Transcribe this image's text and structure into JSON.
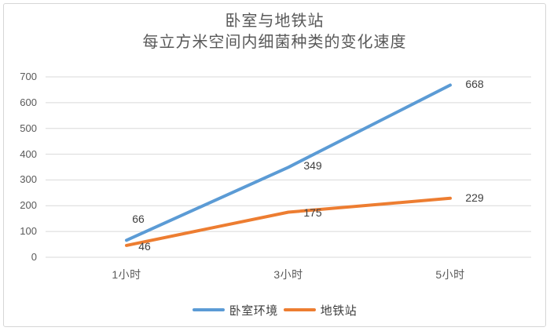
{
  "chart_data": {
    "type": "line",
    "title": "卧室与地铁站",
    "subtitle": "每立方米空间内细菌种类的变化速度",
    "categories": [
      "1小时",
      "3小时",
      "5小时"
    ],
    "series": [
      {
        "name": "卧室环境",
        "values": [
          66,
          349,
          668
        ],
        "color": "#5B9BD5"
      },
      {
        "name": "地铁站",
        "values": [
          46,
          175,
          229
        ],
        "color": "#ED7D31"
      }
    ],
    "ylim": [
      0,
      700
    ],
    "ytick_step": 100,
    "yticks": [
      0,
      100,
      200,
      300,
      400,
      500,
      600,
      700
    ],
    "grid": true,
    "legend_position": "bottom",
    "data_labels": true,
    "colors": {
      "gridline": "#D9D9D9",
      "axis_text": "#595959",
      "title_text": "#595959",
      "data_label_text": "#404040",
      "border": "#D6D6D6",
      "background": "#FFFFFF"
    }
  }
}
